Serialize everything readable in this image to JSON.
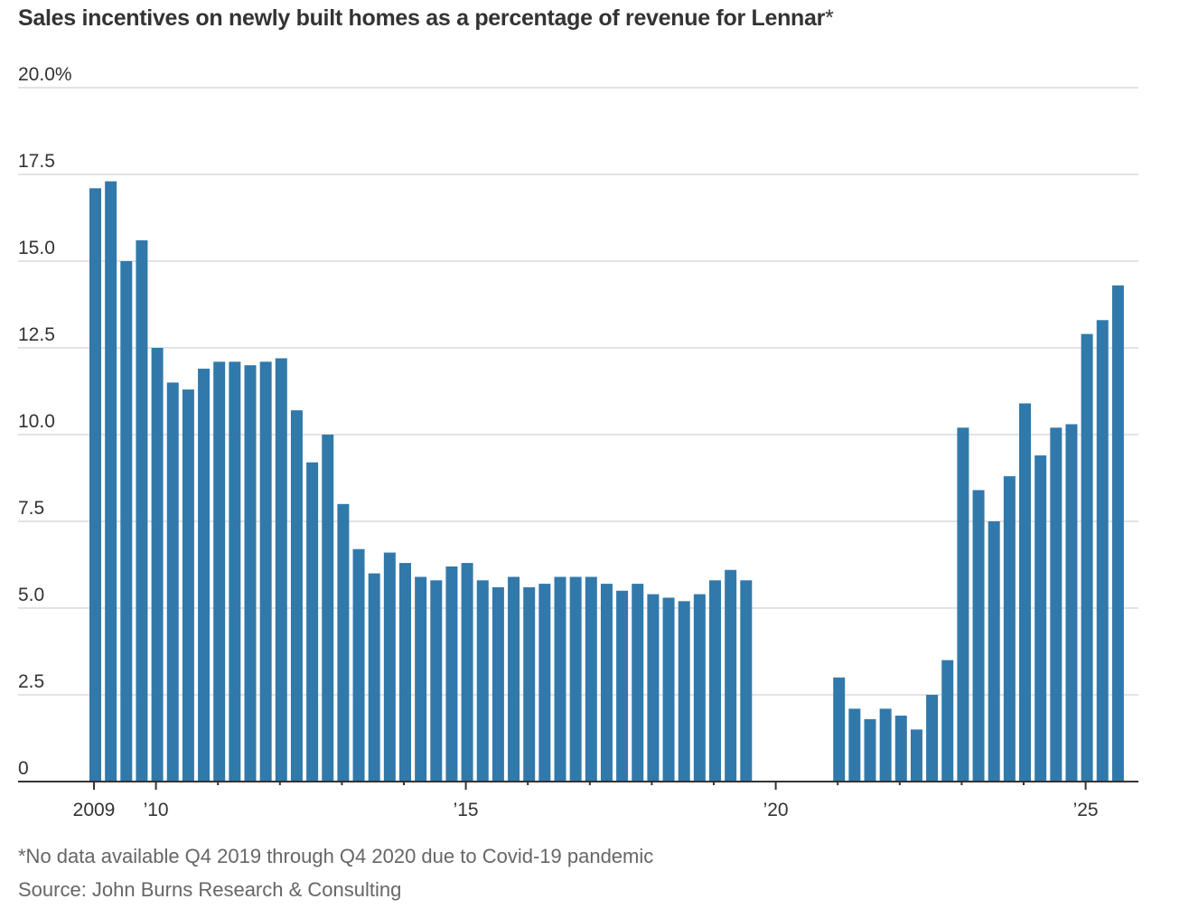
{
  "chart_data": {
    "type": "bar",
    "title": "Sales incentives on newly built homes as a percentage of revenue for Lennar",
    "title_mark": "*",
    "xlabel": "",
    "ylabel": "",
    "ylim": [
      0,
      20
    ],
    "yticks": [
      0,
      2.5,
      5,
      7.5,
      10,
      12.5,
      15,
      17.5,
      20
    ],
    "ytick_labels": [
      "0",
      "2.5",
      "5.0",
      "7.5",
      "10.0",
      "12.5",
      "15.0",
      "17.5",
      "20.0%"
    ],
    "xtick_years": [
      2009,
      2010,
      2015,
      2020,
      2025
    ],
    "xtick_labels": [
      "2009",
      "’10",
      "’15",
      "’20",
      "’25"
    ],
    "grid": true,
    "bar_color": "#3179ab",
    "start": "2009 Q1",
    "frequency": "quarterly",
    "values": [
      17.1,
      17.3,
      15.0,
      15.6,
      12.5,
      11.5,
      11.3,
      11.9,
      12.1,
      12.1,
      12.0,
      12.1,
      12.2,
      10.7,
      9.2,
      10.0,
      8.0,
      6.7,
      6.0,
      6.6,
      6.3,
      5.9,
      5.8,
      6.2,
      6.3,
      5.8,
      5.6,
      5.9,
      5.6,
      5.7,
      5.9,
      5.9,
      5.9,
      5.7,
      5.5,
      5.7,
      5.4,
      5.3,
      5.2,
      5.4,
      5.8,
      6.1,
      5.8,
      null,
      null,
      null,
      null,
      null,
      3.0,
      2.1,
      1.8,
      2.1,
      1.9,
      1.5,
      2.5,
      3.5,
      10.2,
      8.4,
      7.5,
      8.8,
      10.9,
      9.4,
      10.2,
      10.3,
      12.9,
      13.3,
      14.3
    ]
  },
  "footnote": "*No data available Q4 2019 through Q4 2020 due to Covid-19 pandemic",
  "source": "Source: John Burns Research & Consulting"
}
